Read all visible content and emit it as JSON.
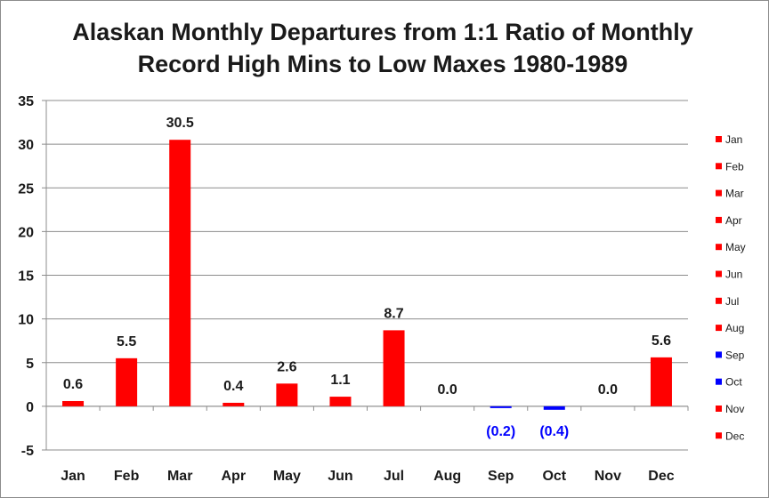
{
  "chart_data": {
    "type": "bar",
    "title_line1": "Alaskan Monthly Departures from 1:1 Ratio of Monthly",
    "title_line2": "Record High Mins to Low Maxes 1980-1989",
    "categories": [
      "Jan",
      "Feb",
      "Mar",
      "Apr",
      "May",
      "Jun",
      "Jul",
      "Aug",
      "Sep",
      "Oct",
      "Nov",
      "Dec"
    ],
    "values": [
      0.6,
      5.5,
      30.5,
      0.4,
      2.6,
      1.1,
      8.7,
      0.0,
      -0.2,
      -0.4,
      0.0,
      5.6
    ],
    "data_labels": [
      "0.6",
      "5.5",
      "30.5",
      "0.4",
      "2.6",
      "1.1",
      "8.7",
      "0.0",
      "(0.2)",
      "(0.4)",
      "0.0",
      "5.6"
    ],
    "ylim": [
      -5,
      35
    ],
    "yticks": [
      -5,
      0,
      5,
      10,
      15,
      20,
      25,
      30,
      35
    ],
    "grid": true,
    "legend": [
      "Jan",
      "Feb",
      "Mar",
      "Apr",
      "May",
      "Jun",
      "Jul",
      "Aug",
      "Sep",
      "Oct",
      "Nov",
      "Dec"
    ],
    "legend_position": "right",
    "colors": {
      "positive": "#ff0000",
      "negative": "#0000ff",
      "grid": "#8c8c8c",
      "text": "#1a1a1a"
    }
  }
}
